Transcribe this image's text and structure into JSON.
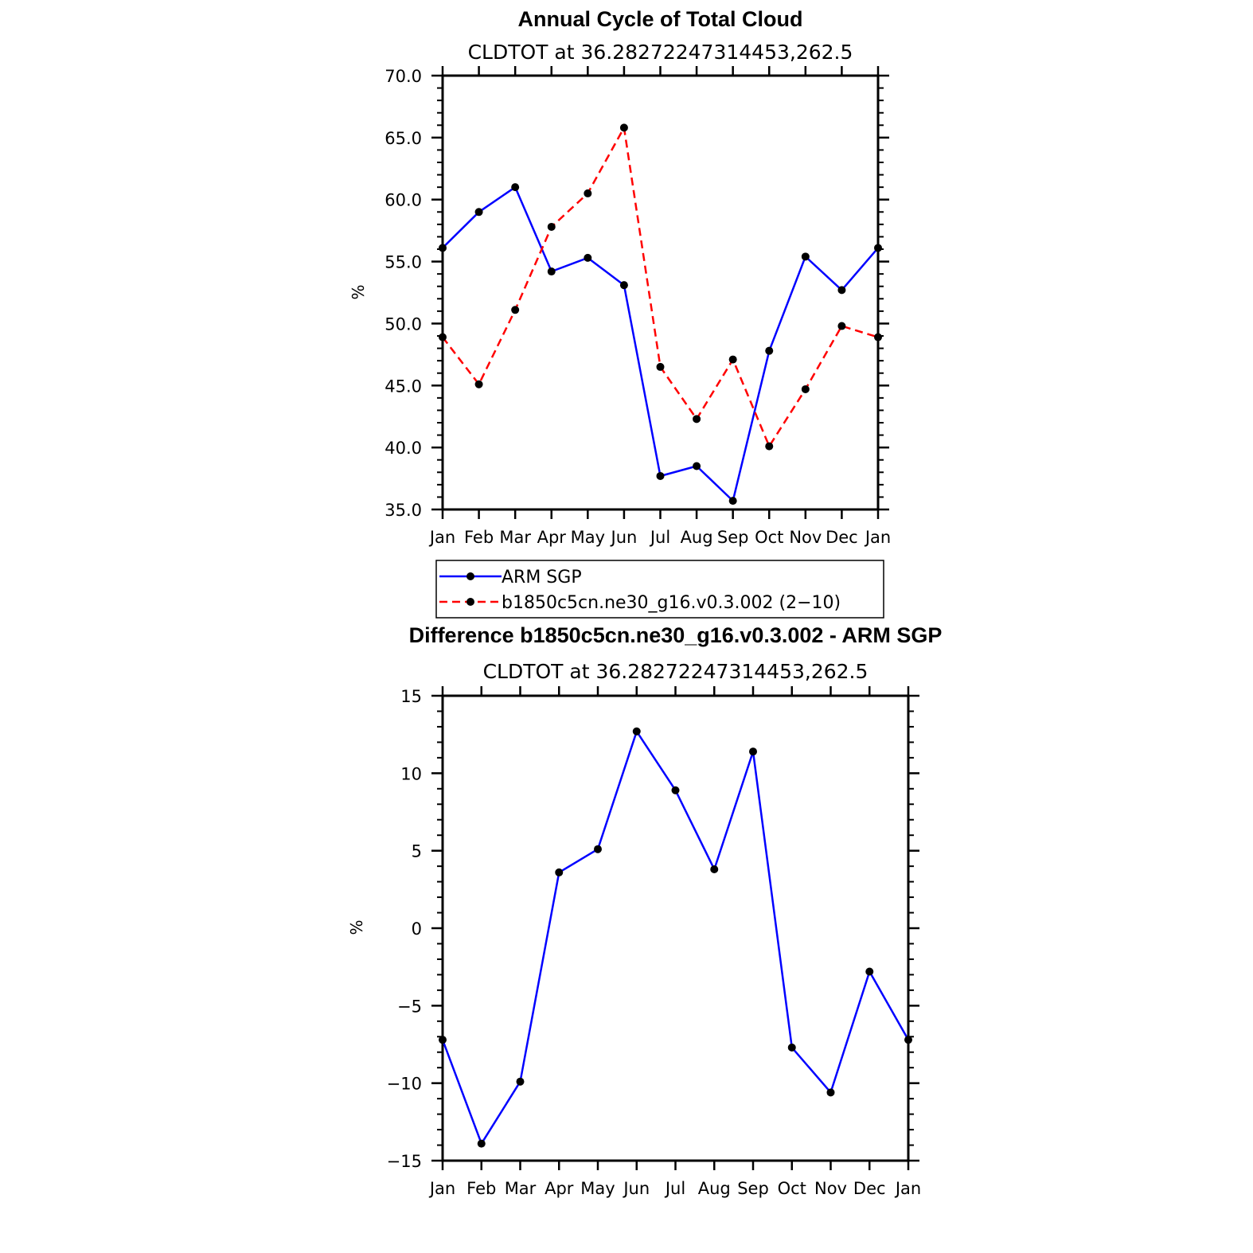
{
  "chart_data": [
    {
      "type": "line",
      "title": "Annual Cycle of Total Cloud",
      "subtitle": "CLDTOT at 36.28272247314453,262.5",
      "xlabel": "",
      "ylabel": "%",
      "categories": [
        "Jan",
        "Feb",
        "Mar",
        "Apr",
        "May",
        "Jun",
        "Jul",
        "Aug",
        "Sep",
        "Oct",
        "Nov",
        "Dec",
        "Jan"
      ],
      "ylim": [
        35,
        70
      ],
      "yticks": [
        "35.0",
        "40.0",
        "45.0",
        "50.0",
        "55.0",
        "60.0",
        "65.0",
        "70.0"
      ],
      "series": [
        {
          "name": "ARM SGP",
          "color": "#0000ff",
          "dash": "solid",
          "values": [
            56.1,
            59.0,
            61.0,
            54.2,
            55.3,
            53.1,
            37.7,
            38.5,
            35.7,
            47.8,
            55.4,
            52.7,
            56.1
          ]
        },
        {
          "name": "b1850c5cn.ne30_g16.v0.3.002 (2−10)",
          "color": "#ff0000",
          "dash": "dashed",
          "values": [
            48.9,
            45.1,
            51.1,
            57.8,
            60.5,
            65.8,
            46.5,
            42.3,
            47.1,
            40.1,
            44.7,
            49.8,
            48.9
          ]
        }
      ],
      "legend": "bottom-center"
    },
    {
      "type": "line",
      "title": "Difference b1850c5cn.ne30_g16.v0.3.002 - ARM SGP",
      "subtitle": "CLDTOT at 36.28272247314453,262.5",
      "xlabel": "",
      "ylabel": "%",
      "categories": [
        "Jan",
        "Feb",
        "Mar",
        "Apr",
        "May",
        "Jun",
        "Jul",
        "Aug",
        "Sep",
        "Oct",
        "Nov",
        "Dec",
        "Jan"
      ],
      "ylim": [
        -15,
        15
      ],
      "yticks": [
        "−15",
        "−10",
        "−5",
        "0",
        "5",
        "10",
        "15"
      ],
      "series": [
        {
          "name": "Difference",
          "color": "#0000ff",
          "dash": "solid",
          "values": [
            -7.2,
            -13.9,
            -9.9,
            3.6,
            5.1,
            12.7,
            8.9,
            3.8,
            11.4,
            -7.7,
            -10.6,
            -2.8,
            -7.2
          ]
        }
      ]
    }
  ]
}
